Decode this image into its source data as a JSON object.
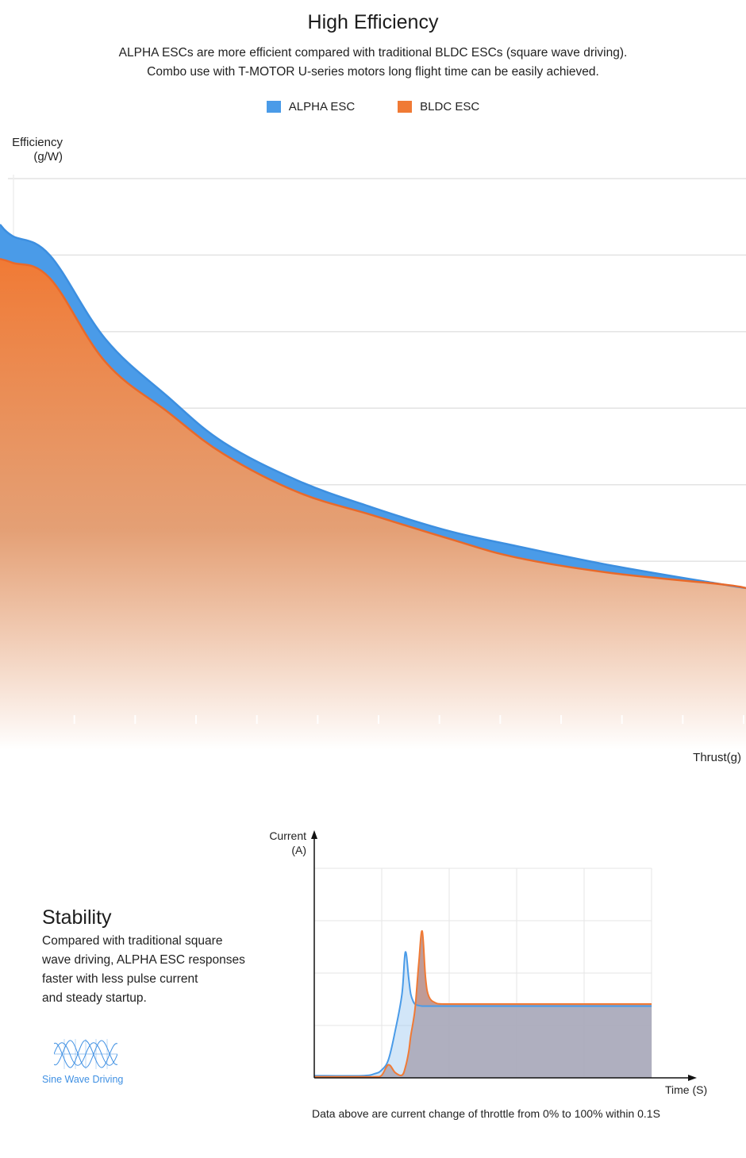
{
  "header": {
    "title": "High Efficiency",
    "subtitle_line1": "ALPHA ESCs are more efficient compared with traditional BLDC ESCs (square wave driving).",
    "subtitle_line2": "Combo use with T-MOTOR U-series motors long flight time can be easily achieved."
  },
  "colors": {
    "alpha": "#4a9be8",
    "bldc": "#f07a35",
    "grid": "#e3e3e3",
    "sine_icon": "#3f90e3"
  },
  "chart_data": [
    {
      "type": "area",
      "title": "",
      "xlabel": "Thrust(g)",
      "ylabel_line1": "Efficiency",
      "ylabel_line2": "(g/W)",
      "ylim": [
        0,
        7
      ],
      "xlim": [
        0,
        12
      ],
      "grid": true,
      "legend": "top-center",
      "x": [
        0,
        0.2,
        0.8,
        1.7,
        2.7,
        3.6,
        4.8,
        6.0,
        7.2,
        8.3,
        9.8,
        11.6,
        12.0
      ],
      "series": [
        {
          "name": "ALPHA ESC",
          "values": [
            6.4,
            6.25,
            6.0,
            4.9,
            4.15,
            3.55,
            3.05,
            2.7,
            2.4,
            2.2,
            1.95,
            1.7,
            1.65
          ]
        },
        {
          "name": "BLDC ESC",
          "values": [
            5.95,
            5.9,
            5.7,
            4.6,
            3.95,
            3.4,
            2.9,
            2.6,
            2.3,
            2.05,
            1.85,
            1.7,
            1.65
          ]
        }
      ]
    },
    {
      "type": "area",
      "title": "",
      "xlabel": "Time  (S)",
      "ylabel_line1": "Current",
      "ylabel_line2": "(A)",
      "xlim": [
        0,
        5
      ],
      "ylim": [
        0,
        4
      ],
      "grid": true,
      "x": [
        0,
        0.7,
        0.9,
        1.0,
        1.1,
        1.2,
        1.3,
        1.35,
        1.4,
        1.43,
        1.47,
        1.5,
        1.55,
        1.6,
        1.65,
        1.7,
        1.8,
        1.9,
        2.0,
        2.2,
        3.0,
        4.0,
        5.0
      ],
      "series": [
        {
          "name": "ALPHA ESC",
          "values": [
            0.04,
            0.04,
            0.08,
            0.15,
            0.35,
            0.9,
            1.6,
            2.4,
            1.9,
            1.6,
            1.45,
            1.4,
            1.38,
            1.37,
            1.37,
            1.37,
            1.37,
            1.37,
            1.37,
            1.37,
            1.37,
            1.37,
            1.37
          ]
        },
        {
          "name": "BLDC ESC",
          "values": [
            0.02,
            0.02,
            0.02,
            0.05,
            0.25,
            0.1,
            0.05,
            0.2,
            0.5,
            0.8,
            1.1,
            1.4,
            2.2,
            2.8,
            1.9,
            1.55,
            1.43,
            1.41,
            1.41,
            1.41,
            1.41,
            1.41,
            1.41
          ]
        }
      ]
    }
  ],
  "stability": {
    "title": "Stability",
    "text_lines": [
      "Compared with traditional square",
      "wave driving, ALPHA ESC responses",
      "faster with less pulse current",
      "and steady startup."
    ],
    "icon_label": "Sine Wave Driving",
    "note": "Data above are current change of throttle from 0% to 100% within 0.1S"
  }
}
